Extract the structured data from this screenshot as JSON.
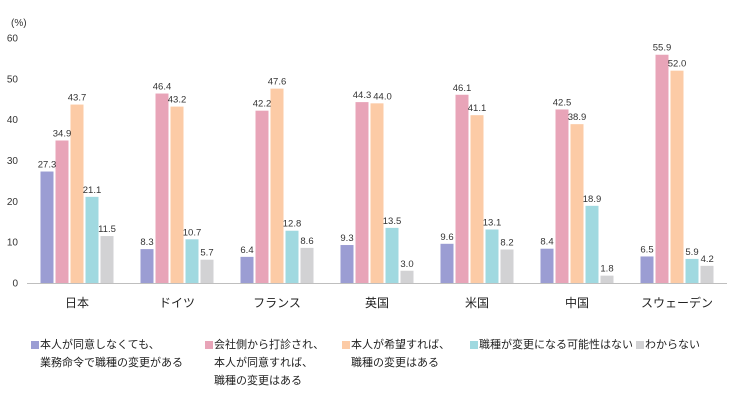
{
  "chart_data": {
    "type": "bar",
    "ylabel": "(%)",
    "ylim": [
      0,
      60
    ],
    "yticks": [
      0,
      10,
      20,
      30,
      40,
      50,
      60
    ],
    "grid": false,
    "legend_position": "bottom",
    "data_labels": true,
    "categories": [
      "日本",
      "ドイツ",
      "フランス",
      "英国",
      "米国",
      "中国",
      "スウェーデン"
    ],
    "series": [
      {
        "name": "本人が同意しなくても、\n業務命令で職種の変更がある",
        "color": "#9b9dd3",
        "values": [
          27.3,
          8.3,
          6.4,
          9.3,
          9.6,
          8.4,
          6.5
        ]
      },
      {
        "name": "会社側から打診され、\n本人が同意すれば、\n職種の変更はある",
        "color": "#e8a4b8",
        "values": [
          34.9,
          46.4,
          42.2,
          44.3,
          46.1,
          42.5,
          55.9
        ]
      },
      {
        "name": "本人が希望すれば、\n職種の変更はある",
        "color": "#fccba6",
        "values": [
          43.7,
          43.2,
          47.6,
          44.0,
          41.1,
          38.9,
          52.0
        ]
      },
      {
        "name": "職種が変更になる可能性はない",
        "color": "#a0d9e0",
        "values": [
          21.1,
          10.7,
          12.8,
          13.5,
          13.1,
          18.9,
          5.9
        ]
      },
      {
        "name": "わからない",
        "color": "#d2d2d4",
        "values": [
          11.5,
          5.7,
          8.6,
          3.0,
          8.2,
          1.8,
          4.2
        ]
      }
    ]
  }
}
